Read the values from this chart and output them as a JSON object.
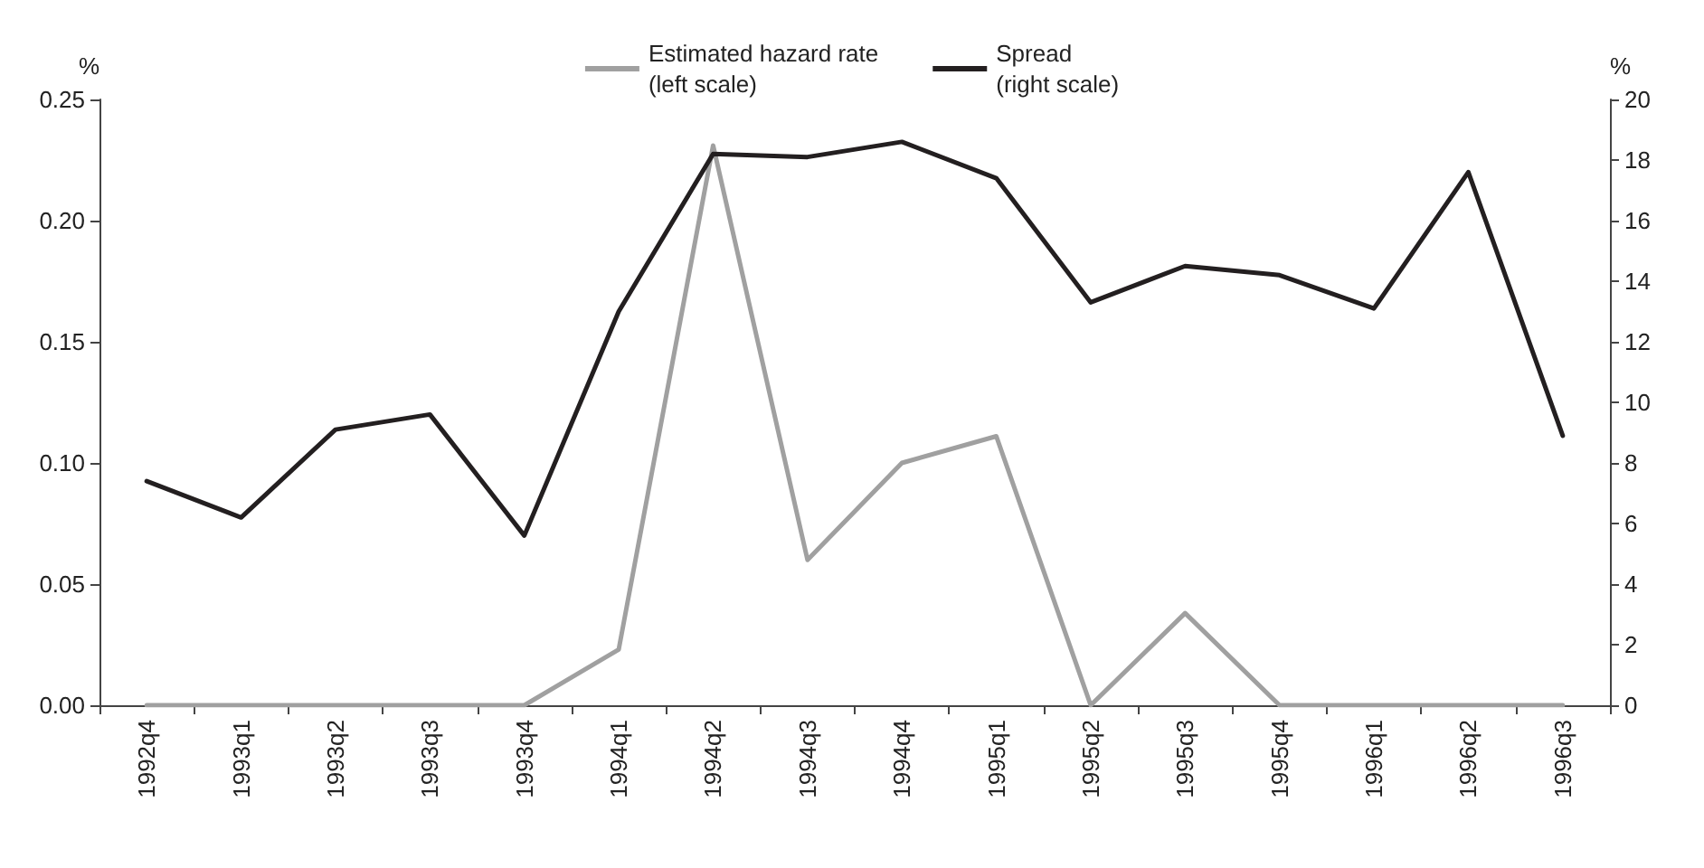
{
  "chart_data": {
    "type": "line",
    "ylabel": "%",
    "y2label": "%",
    "categories": [
      "1992q4",
      "1993q1",
      "1993q2",
      "1993q3",
      "1993q4",
      "1994q1",
      "1994q2",
      "1994q3",
      "1994q4",
      "1995q1",
      "1995q2",
      "1995q3",
      "1995q4",
      "1996q1",
      "1996q2",
      "1996q3"
    ],
    "series": [
      {
        "name": "Estimated hazard rate\n(left scale)",
        "color": "#a0a0a0",
        "values": [
          0,
          0,
          0,
          0,
          0,
          0.023,
          0.231,
          0.06,
          0.1,
          0.111,
          0,
          0.038,
          0,
          0,
          0,
          0
        ]
      },
      {
        "name": "Spread\n(right scale)",
        "color": "#231f20",
        "axis": "y2",
        "values": [
          7.4,
          6.2,
          9.1,
          9.6,
          5.6,
          13.0,
          18.2,
          18.1,
          18.6,
          17.4,
          13.3,
          14.5,
          14.2,
          13.1,
          17.6,
          8.9
        ]
      }
    ],
    "ylim": [
      0,
      0.25
    ],
    "yticks": [
      {
        "value": 0,
        "label": "0.00"
      },
      {
        "value": 0.05,
        "label": "0.05"
      },
      {
        "value": 0.1,
        "label": "0.10"
      },
      {
        "value": 0.15,
        "label": "0.15"
      },
      {
        "value": 0.2,
        "label": "0.20"
      },
      {
        "value": 0.25,
        "label": "0.25"
      }
    ],
    "y2lim": [
      0,
      20
    ],
    "y2ticks": [
      0,
      2,
      4,
      6,
      8,
      10,
      12,
      14,
      16,
      18,
      20
    ],
    "grid": false,
    "legend": "top",
    "marker": "none",
    "line_style": "solid"
  }
}
